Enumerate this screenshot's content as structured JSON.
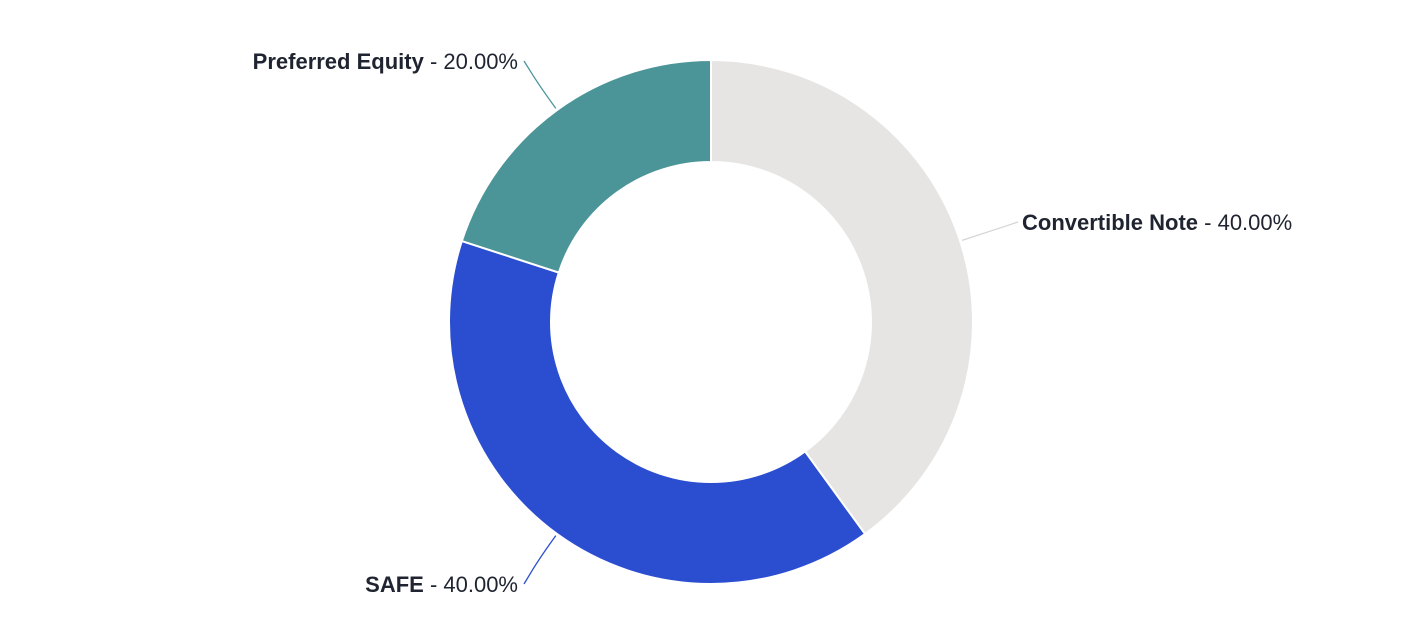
{
  "chart_data": {
    "type": "pie",
    "donut": true,
    "categories": [
      "Convertible Note",
      "SAFE",
      "Preferred Equity"
    ],
    "values": [
      40.0,
      40.0,
      20.0
    ],
    "value_labels": [
      "40.00%",
      "40.00%",
      "20.00%"
    ],
    "colors": [
      "#e6e5e3",
      "#2b4ed1",
      "#4b9598"
    ],
    "title": "",
    "legend": "none"
  }
}
